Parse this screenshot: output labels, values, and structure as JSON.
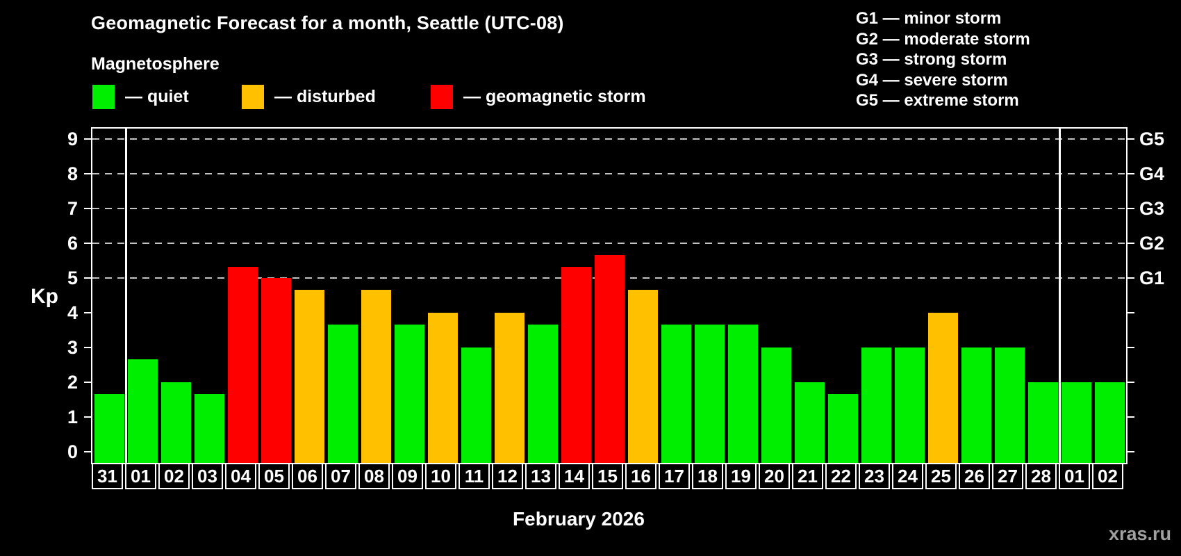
{
  "header": {
    "title": "Geomagnetic Forecast for a month, Seattle (UTC-08)",
    "legend_title": "Magnetosphere"
  },
  "legend": {
    "items": [
      {
        "label": "— quiet",
        "status": "quiet",
        "color": "#00ee00"
      },
      {
        "label": "— disturbed",
        "status": "disturbed",
        "color": "#ffc000"
      },
      {
        "label": "— geomagnetic storm",
        "status": "storm",
        "color": "#ff0000"
      }
    ]
  },
  "storm_scale_legend": {
    "items": [
      "G1 — minor storm",
      "G2 — moderate storm",
      "G3 — strong storm",
      "G4 — severe storm",
      "G5 — extreme storm"
    ]
  },
  "footer": {
    "watermark": "xras.ru"
  },
  "colors": {
    "background": "#000000",
    "text": "#ffffff",
    "gridline": "#c3c3c3",
    "watermark": "#a0a0a0"
  },
  "chart_data": {
    "type": "bar",
    "title": "Geomagnetic Forecast for a month, Seattle (UTC-08)",
    "ylabel": "Kp",
    "xlabel": "February 2026",
    "ylim": [
      0,
      9
    ],
    "y_ticks": [
      0,
      1,
      2,
      3,
      4,
      5,
      6,
      7,
      8,
      9
    ],
    "gridlines_at_kp": [
      5,
      6,
      7,
      8,
      9
    ],
    "grid": "dashed horizontal lines at storm levels only",
    "legend_position": "top-left (colors) and top-right (G scale)",
    "right_axis_labels": [
      {
        "kp": 5,
        "label": "G1"
      },
      {
        "kp": 6,
        "label": "G2"
      },
      {
        "kp": 7,
        "label": "G3"
      },
      {
        "kp": 8,
        "label": "G4"
      },
      {
        "kp": 9,
        "label": "G5"
      }
    ],
    "categories": [
      "31",
      "01",
      "02",
      "03",
      "04",
      "05",
      "06",
      "07",
      "08",
      "09",
      "10",
      "11",
      "12",
      "13",
      "14",
      "15",
      "16",
      "17",
      "18",
      "19",
      "20",
      "21",
      "22",
      "23",
      "24",
      "25",
      "26",
      "27",
      "28",
      "01",
      "02"
    ],
    "values": [
      1.67,
      2.67,
      2,
      1.67,
      5.33,
      5,
      4.67,
      3.67,
      4.67,
      3.67,
      4,
      3,
      4,
      3.67,
      5.33,
      5.67,
      4.67,
      3.67,
      3.67,
      3.67,
      3,
      2,
      1.67,
      3,
      3,
      4,
      3,
      3,
      2,
      2,
      2
    ],
    "statuses": [
      "quiet",
      "quiet",
      "quiet",
      "quiet",
      "storm",
      "storm",
      "disturbed",
      "quiet",
      "disturbed",
      "quiet",
      "disturbed",
      "quiet",
      "disturbed",
      "quiet",
      "storm",
      "storm",
      "disturbed",
      "quiet",
      "quiet",
      "quiet",
      "quiet",
      "quiet",
      "quiet",
      "quiet",
      "quiet",
      "disturbed",
      "quiet",
      "quiet",
      "quiet",
      "quiet",
      "quiet"
    ],
    "status_colors": {
      "quiet": "#00ee00",
      "disturbed": "#ffc000",
      "storm": "#ff0000"
    },
    "month_separators_after_index": [
      0,
      28
    ]
  }
}
